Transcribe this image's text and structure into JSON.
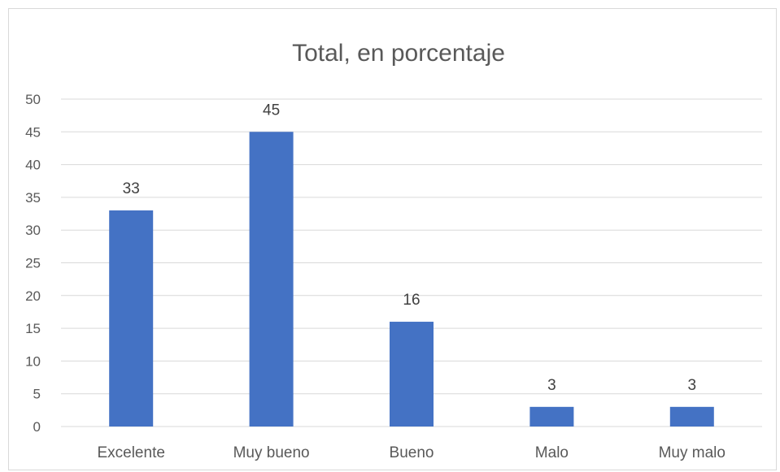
{
  "chart_data": {
    "type": "bar",
    "title": "Total, en porcentaje",
    "categories": [
      "Excelente",
      "Muy bueno",
      "Bueno",
      "Malo",
      "Muy malo"
    ],
    "values": [
      33,
      45,
      16,
      3,
      3
    ],
    "data_labels": [
      "33",
      "45",
      "16",
      "3",
      "3"
    ],
    "ylim": [
      0,
      50
    ],
    "yticks": [
      0,
      5,
      10,
      15,
      20,
      25,
      30,
      35,
      40,
      45,
      50
    ],
    "xlabel": "",
    "ylabel": "",
    "grid": true,
    "bar_color": "#4472C4"
  }
}
